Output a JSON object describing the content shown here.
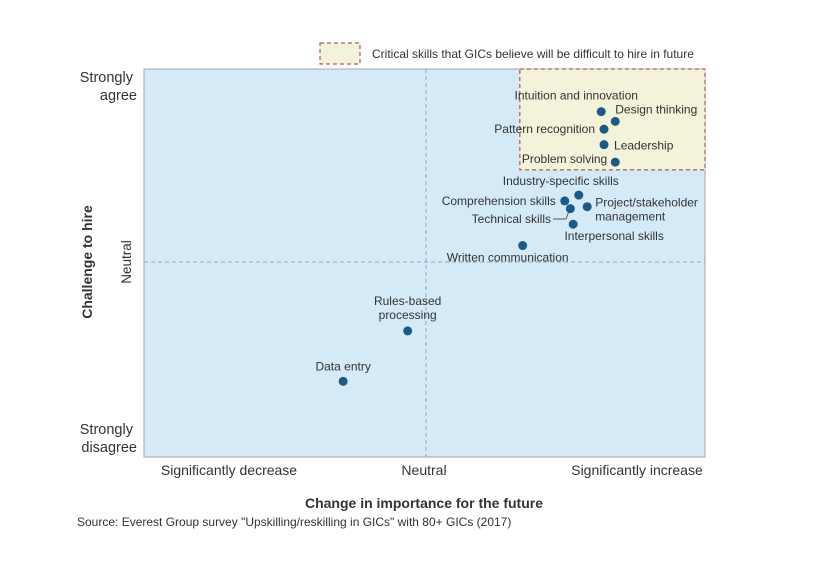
{
  "legend": {
    "label": "Critical skills that GICs believe will be difficult to hire in future"
  },
  "chart_data": {
    "type": "scatter",
    "title": "",
    "xlabel": "Change in importance for the future",
    "ylabel": "Challenge to hire",
    "xlim": [
      -1,
      1
    ],
    "ylim": [
      -1,
      1
    ],
    "x_tick_labels": [
      "Significantly decrease",
      "Neutral",
      "Significantly increase"
    ],
    "y_tick_labels": [
      "Strongly\nagree",
      "Neutral",
      "Strongly\ndisagree"
    ],
    "grid": false,
    "quadrant_lines": true,
    "critical_region": {
      "x": [
        0.34,
        1.0
      ],
      "y": [
        0.48,
        1.0
      ]
    },
    "points": [
      {
        "label": "Intuition and innovation",
        "x": 0.63,
        "y": 0.78
      },
      {
        "label": "Design thinking",
        "x": 0.68,
        "y": 0.73
      },
      {
        "label": "Pattern recognition",
        "x": 0.64,
        "y": 0.69
      },
      {
        "label": "Leadership",
        "x": 0.64,
        "y": 0.61
      },
      {
        "label": "Problem solving",
        "x": 0.68,
        "y": 0.52
      },
      {
        "label": "Industry-specific skills",
        "x": 0.55,
        "y": 0.35
      },
      {
        "label": "Comprehension skills",
        "x": 0.5,
        "y": 0.32
      },
      {
        "label": "Project/stakeholder management",
        "x": 0.58,
        "y": 0.29
      },
      {
        "label": "Technical skills",
        "x": 0.52,
        "y": 0.28
      },
      {
        "label": "Interpersonal skills",
        "x": 0.53,
        "y": 0.2
      },
      {
        "label": "Written communication",
        "x": 0.35,
        "y": 0.09
      },
      {
        "label": "Rules-based processing",
        "x": -0.06,
        "y": -0.35
      },
      {
        "label": "Data entry",
        "x": -0.29,
        "y": -0.61
      }
    ]
  },
  "colors": {
    "plot_bg": "#d4eaf7",
    "region_fill": "#f2f3d9",
    "region_border": "#a33a32",
    "point": "#1b5b8a"
  },
  "source": "Source:   Everest Group survey \"Upskilling/reskilling in GICs\" with 80+ GICs (2017)"
}
